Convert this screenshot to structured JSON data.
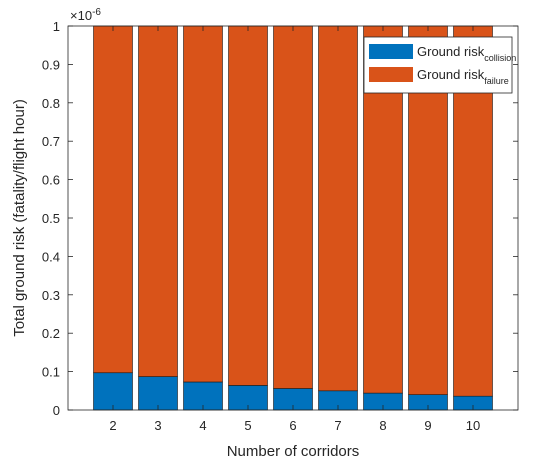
{
  "chart_data": {
    "type": "bar",
    "stacked": true,
    "categories": [
      "2",
      "3",
      "4",
      "5",
      "6",
      "7",
      "8",
      "9",
      "10"
    ],
    "series": [
      {
        "name": "Ground risk",
        "subscript": "collision",
        "color": "#0072BD",
        "values": [
          0.097,
          0.087,
          0.073,
          0.064,
          0.056,
          0.05,
          0.044,
          0.04,
          0.036
        ]
      },
      {
        "name": "Ground risk",
        "subscript": "failure",
        "color": "#D95319",
        "values": [
          0.903,
          0.913,
          0.927,
          0.936,
          0.944,
          0.95,
          0.956,
          0.96,
          0.964
        ]
      }
    ],
    "xlabel": "Number of corridors",
    "ylabel": "Total ground risk (fatality/flight hour)",
    "ylim": [
      0,
      1
    ],
    "yticks": [
      0,
      0.1,
      0.2,
      0.3,
      0.4,
      0.5,
      0.6,
      0.7,
      0.8,
      0.9,
      1
    ],
    "ytick_labels": [
      "0",
      "0.1",
      "0.2",
      "0.3",
      "0.4",
      "0.5",
      "0.6",
      "0.7",
      "0.8",
      "0.9",
      "1"
    ],
    "y_exponent_label": {
      "base": "×10",
      "exp": "-6"
    },
    "grid": false,
    "legend_placement": "top-right"
  }
}
